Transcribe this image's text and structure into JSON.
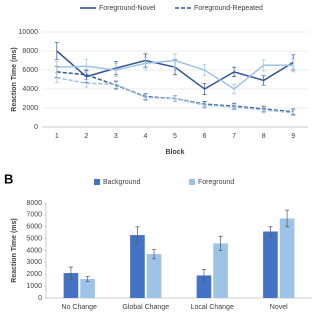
{
  "panel_label": "B",
  "chart_data": [
    {
      "type": "line",
      "ylabel": "Reaction Time (ms)",
      "xlabel": "Block",
      "categories": [
        "1",
        "2",
        "3",
        "4",
        "5",
        "6",
        "7",
        "8",
        "9"
      ],
      "ylim": [
        0,
        10000
      ],
      "yticks": [
        0,
        2000,
        4000,
        6000,
        8000,
        10000
      ],
      "grid": true,
      "legend": "top",
      "series": [
        {
          "name": "Foreground-Novel",
          "color": "#2f5597",
          "dash": false,
          "values": [
            8000,
            5300,
            6200,
            7000,
            6300,
            4000,
            5800,
            4900,
            6800
          ],
          "errors": [
            900,
            600,
            700,
            700,
            800,
            600,
            500,
            500,
            800
          ]
        },
        {
          "name": "Foreground-Repeated",
          "color": "#2f5597",
          "dash": true,
          "values": [
            5800,
            5500,
            4400,
            3200,
            3000,
            2400,
            2200,
            1900,
            1600
          ],
          "errors": [
            600,
            500,
            400,
            300,
            300,
            300,
            300,
            300,
            300
          ]
        },
        {
          "color": "#9dc3e6",
          "dash": false,
          "values": [
            6300,
            6400,
            6000,
            6700,
            7000,
            6000,
            4000,
            6500,
            6500
          ],
          "errors": [
            600,
            700,
            700,
            600,
            700,
            600,
            500,
            600,
            700
          ]
        },
        {
          "color": "#9dc3e6",
          "dash": true,
          "values": [
            5200,
            4600,
            4500,
            3100,
            3000,
            2300,
            2100,
            1800,
            1500
          ],
          "errors": [
            500,
            400,
            400,
            300,
            300,
            300,
            300,
            300,
            300
          ]
        }
      ]
    },
    {
      "type": "bar",
      "ylabel": "Reaction Time (ms)",
      "categories": [
        "No Change",
        "Global Change",
        "Local Change",
        "Novel"
      ],
      "ylim": [
        0,
        8000
      ],
      "yticks": [
        0,
        1000,
        2000,
        3000,
        4000,
        5000,
        6000,
        7000,
        8000
      ],
      "grid": false,
      "legend": "top",
      "series": [
        {
          "name": "Background",
          "color": "#4472c4",
          "values": [
            2100,
            5300,
            1900,
            5600
          ],
          "errors": [
            500,
            700,
            500,
            400
          ]
        },
        {
          "name": "Foreground",
          "color": "#9dc3e6",
          "values": [
            1600,
            3700,
            4600,
            6700
          ],
          "errors": [
            200,
            400,
            600,
            700
          ]
        }
      ]
    }
  ]
}
